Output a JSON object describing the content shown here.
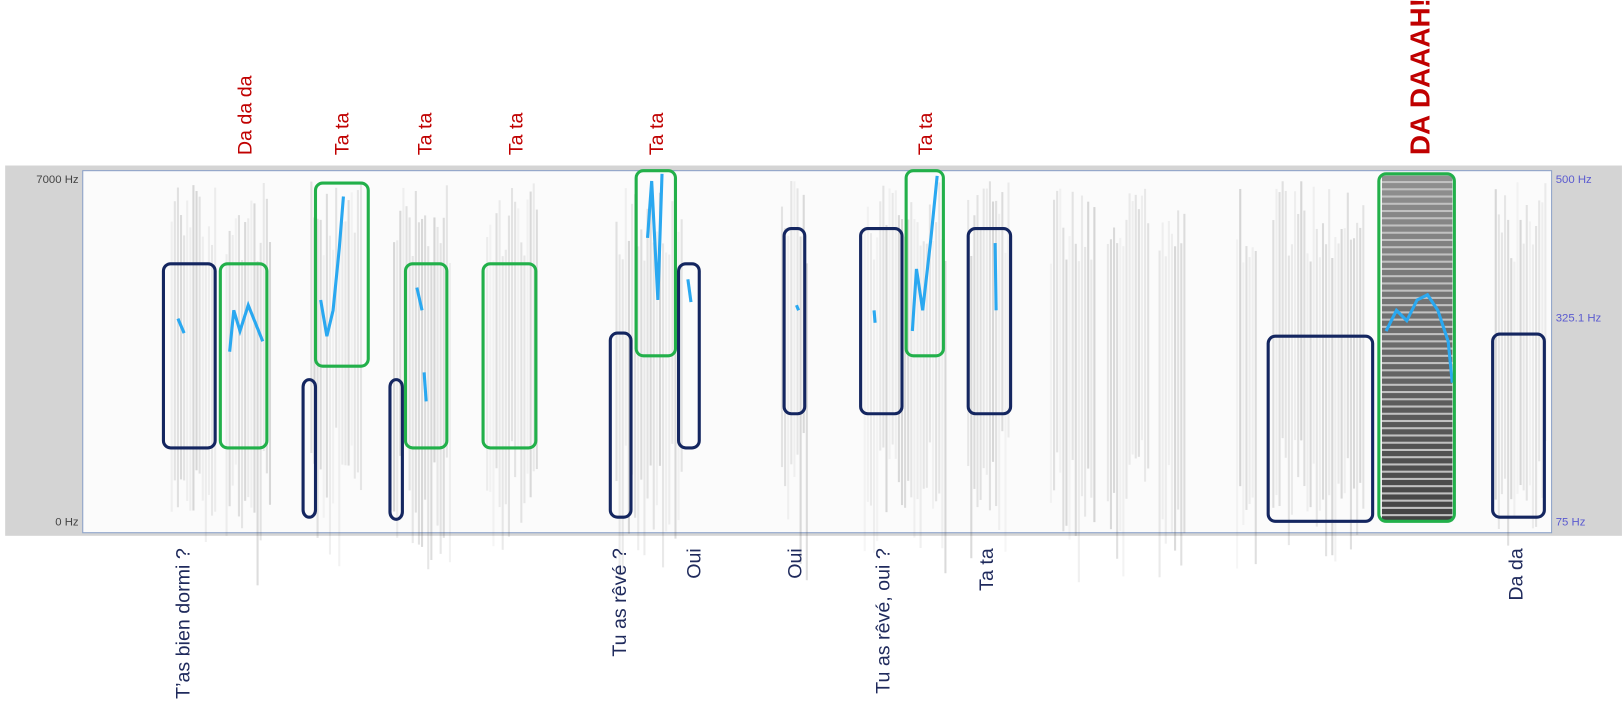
{
  "left_axis": [
    "7000 Hz",
    "0 Hz"
  ],
  "right_axis": [
    "500 Hz",
    "325.1 Hz",
    "75 Hz"
  ],
  "top_labels": [
    "Da da da",
    "Ta ta",
    "Ta ta",
    "Ta ta",
    "Ta ta",
    "Ta ta",
    "DA DAAAH!"
  ],
  "bottom_labels": [
    "T’as bien dormi ?",
    "Tu as rêvé ?",
    "Oui",
    "Oui",
    "Tu as rêvé, oui ?",
    "Ta ta",
    "Da da"
  ]
}
